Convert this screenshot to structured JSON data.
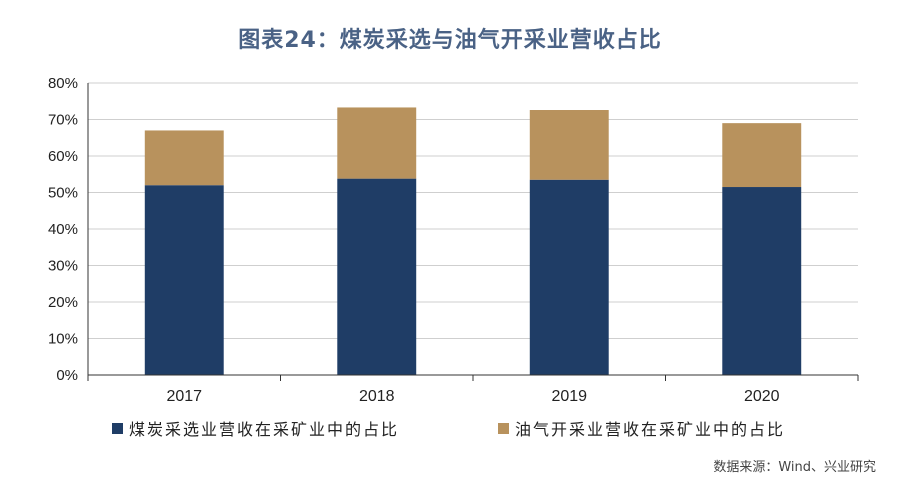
{
  "title": "图表24：煤炭采选与油气开采业营收占比",
  "source": "数据来源：Wind、兴业研究",
  "colors": {
    "series1": "#1f3d66",
    "series2": "#b8925d",
    "grid": "#cfcfcf",
    "axis": "#333333",
    "title": "#4a6285"
  },
  "chart_data": {
    "type": "bar",
    "stacked": true,
    "categories": [
      "2017",
      "2018",
      "2019",
      "2020"
    ],
    "series": [
      {
        "name": "煤炭采选业营收在采矿业中的占比",
        "values": [
          52.0,
          53.8,
          53.5,
          51.5
        ]
      },
      {
        "name": "油气开采业营收在采矿业中的占比",
        "values": [
          15.0,
          19.5,
          19.1,
          17.5
        ]
      }
    ],
    "ylim": [
      0,
      80
    ],
    "yticks": [
      "0%",
      "10%",
      "20%",
      "30%",
      "40%",
      "50%",
      "60%",
      "70%",
      "80%"
    ],
    "grid": true,
    "legend_position": "bottom"
  }
}
